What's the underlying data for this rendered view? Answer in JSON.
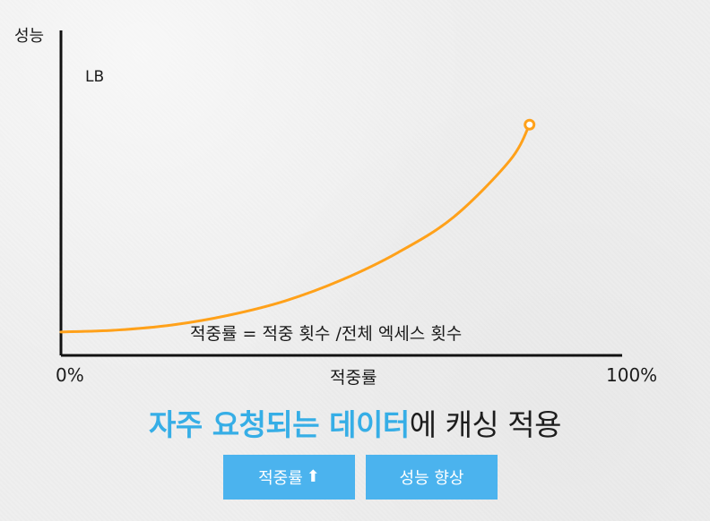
{
  "chart_data": {
    "type": "line",
    "x": [
      0,
      10,
      20,
      30,
      40,
      50,
      60,
      70,
      80,
      83.5
    ],
    "series": [
      {
        "name": "LB",
        "values": [
          3.6,
          3.9,
          4.7,
          6.2,
          8.4,
          11.6,
          15.8,
          21.3,
          30.0,
          35.5
        ]
      }
    ],
    "xlim": [
      0,
      100
    ],
    "ylim": [
      0,
      50
    ],
    "ylabel": "성능",
    "xlabel": "적중률",
    "xtick_labels": [
      "0%",
      "100%"
    ],
    "series_label": "LB",
    "annotation": "적중률 = 적중 횟수 /전체 엑세스 횟수",
    "grid": false,
    "colors": {
      "line": "#ffa11a",
      "axis": "#111111"
    }
  },
  "headline": {
    "highlight_1": "자주 요청되는 데이터",
    "normal_1": "에 캐싱 적용"
  },
  "buttons": {
    "hit_rate": "적중률",
    "performance": "성능 향상"
  },
  "icons": {
    "up_arrow": "up-arrow-icon"
  }
}
